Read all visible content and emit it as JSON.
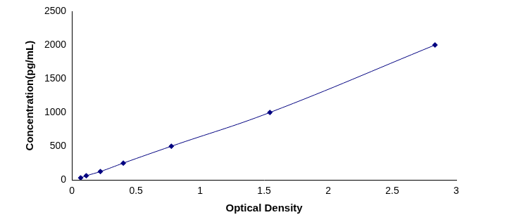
{
  "chart_data": {
    "type": "scatter",
    "x_label": "Optical Density",
    "y_label": "Concentration(pg/mL)",
    "x": [
      0.068,
      0.112,
      0.222,
      0.401,
      0.776,
      1.545,
      2.834
    ],
    "values": [
      31.25,
      62.5,
      125,
      250,
      500,
      1000,
      2000
    ],
    "color": "#000080",
    "marker": "diamond",
    "line_style": "solid",
    "xlim": [
      0,
      3
    ],
    "xticks": [
      0,
      0.5,
      1,
      1.5,
      2,
      2.5,
      3
    ],
    "ylim": [
      0,
      2500
    ],
    "yticks": [
      0,
      500,
      1000,
      1500,
      2000,
      2500
    ],
    "grid": false
  }
}
